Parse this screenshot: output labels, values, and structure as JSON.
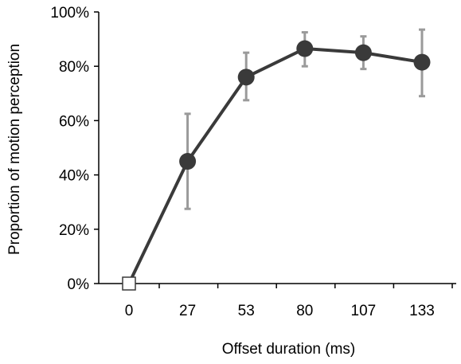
{
  "chart_data": {
    "type": "line",
    "xlabel": "Offset duration (ms)",
    "ylabel": "Proportion of motion perception",
    "categories": [
      "0",
      "27",
      "53",
      "80",
      "107",
      "133"
    ],
    "y_ticks": [
      "0%",
      "20%",
      "40%",
      "60%",
      "80%",
      "100%"
    ],
    "ylim": [
      0,
      100
    ],
    "grid": false,
    "series": [
      {
        "values": [
          0,
          45,
          76,
          86.5,
          85,
          81.5
        ],
        "error_low": [
          0,
          27.5,
          67.5,
          80,
          79,
          69
        ],
        "error_high": [
          0,
          62.5,
          85,
          92.5,
          91,
          93.5
        ],
        "marker_first": "open-square",
        "marker_rest": "filled-circle"
      }
    ],
    "colors": {
      "line": "#3a3a3a",
      "marker": "#3a3a3a",
      "error_bar": "#9a9a9a",
      "open_marker_fill": "#ffffff"
    }
  }
}
